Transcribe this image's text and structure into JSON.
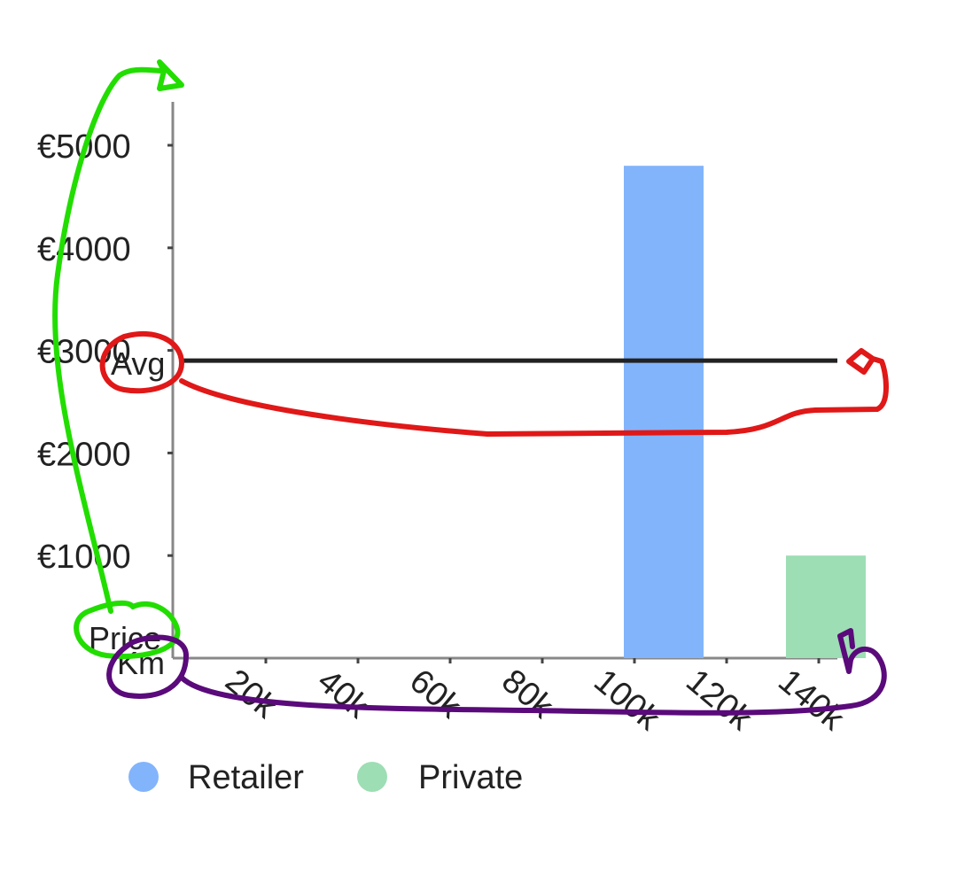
{
  "chart_data": {
    "type": "bar",
    "categories": [
      "20k",
      "40k",
      "60k",
      "80k",
      "100k",
      "120k",
      "140k"
    ],
    "series": [
      {
        "name": "Retailer",
        "color": "#82b4fc",
        "values": [
          0,
          0,
          0,
          0,
          4800,
          0,
          0
        ]
      },
      {
        "name": "Private",
        "color": "#9ddeb4",
        "values": [
          0,
          0,
          0,
          0,
          0,
          0,
          1000
        ]
      }
    ],
    "xlabel": "Km",
    "ylabel": "Price",
    "y_ticks": [
      "€1000",
      "€2000",
      "€3000",
      "€4000",
      "€5000"
    ],
    "y_tick_values": [
      1000,
      2000,
      3000,
      4000,
      5000
    ],
    "ylim": [
      0,
      5400
    ],
    "reference_line": {
      "label": "Avg",
      "value": 2900,
      "color": "#222222"
    },
    "legend_position": "bottom-left",
    "annotations": [
      {
        "name": "green-arrow-annotation",
        "color": "#22dd00"
      },
      {
        "name": "red-arrow-annotation",
        "color": "#e01818"
      },
      {
        "name": "purple-arrow-annotation",
        "color": "#5a0a7a"
      }
    ]
  }
}
